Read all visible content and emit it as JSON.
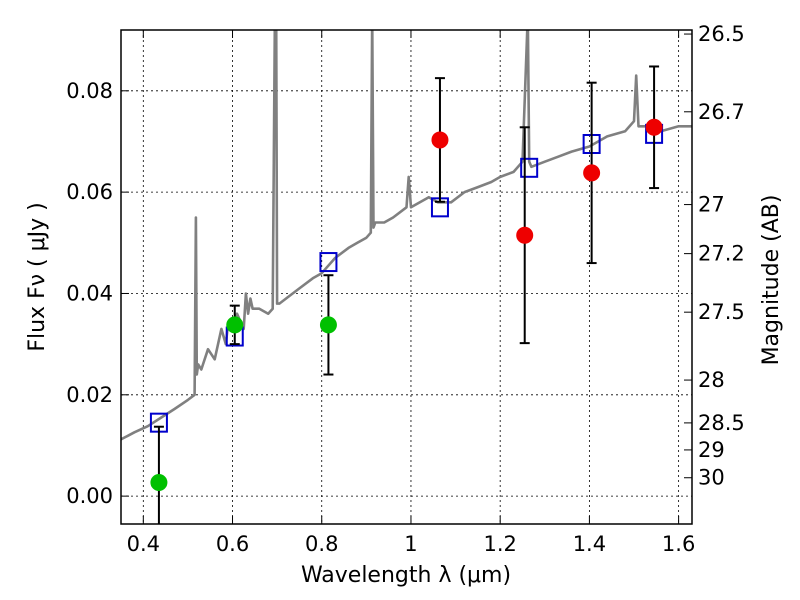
{
  "chart_data": {
    "type": "scatter",
    "xlabel": "Wavelength  λ (μm)",
    "ylabel": "Flux  Fν  ( μJy )",
    "ylabel_right": "Magnitude (AB)",
    "xlim": [
      0.35,
      1.63
    ],
    "ylim": [
      -0.0055,
      0.092
    ],
    "x_ticks": [
      0.4,
      0.6,
      0.8,
      1.0,
      1.2,
      1.4,
      1.6
    ],
    "x_tick_labels": [
      "0.4",
      "0.6",
      "0.8",
      "1",
      "1.2",
      "1.4",
      "1.6"
    ],
    "y_ticks": [
      0.0,
      0.02,
      0.04,
      0.06,
      0.08
    ],
    "y_tick_labels": [
      "0.00",
      "0.02",
      "0.04",
      "0.06",
      "0.08"
    ],
    "mag_ticks": [
      26.5,
      26.7,
      27,
      27.2,
      27.5,
      28,
      28.5,
      29,
      30
    ],
    "mag_tick_labels": [
      "26.5",
      "26.7",
      "27",
      "27.2",
      "27.5",
      "28",
      "28.5",
      "29",
      "30"
    ],
    "grid": true,
    "colors": {
      "model_line": "#808080",
      "model_points": "#0000cc",
      "green_points": "#00c000",
      "red_points": "#ee0000",
      "error_bars": "#000000"
    },
    "series": [
      {
        "kind": "line",
        "color": "#808080",
        "x": [
          0.35,
          0.38,
          0.41,
          0.44,
          0.47,
          0.5,
          0.515,
          0.518,
          0.52,
          0.523,
          0.53,
          0.545,
          0.56,
          0.575,
          0.585,
          0.59,
          0.6,
          0.61,
          0.625,
          0.63,
          0.635,
          0.64,
          0.645,
          0.66,
          0.68,
          0.69,
          0.695,
          0.698,
          0.7,
          0.705,
          0.72,
          0.75,
          0.78,
          0.8,
          0.83,
          0.86,
          0.88,
          0.9,
          0.91,
          0.913,
          0.916,
          0.92,
          0.94,
          0.96,
          0.99,
          0.995,
          1.0,
          1.02,
          1.04,
          1.06,
          1.09,
          1.12,
          1.15,
          1.18,
          1.2,
          1.23,
          1.25,
          1.262,
          1.265,
          1.27,
          1.3,
          1.33,
          1.36,
          1.4,
          1.44,
          1.48,
          1.5,
          1.505,
          1.51,
          1.53,
          1.56,
          1.6,
          1.63
        ],
        "y": [
          0.0112,
          0.0126,
          0.0138,
          0.0155,
          0.0172,
          0.019,
          0.02,
          0.055,
          0.024,
          0.026,
          0.025,
          0.029,
          0.027,
          0.033,
          0.03,
          0.034,
          0.033,
          0.036,
          0.033,
          0.04,
          0.036,
          0.039,
          0.037,
          0.037,
          0.036,
          0.037,
          0.095,
          0.095,
          0.038,
          0.038,
          0.039,
          0.041,
          0.043,
          0.044,
          0.047,
          0.049,
          0.05,
          0.051,
          0.052,
          0.095,
          0.053,
          0.054,
          0.054,
          0.055,
          0.057,
          0.063,
          0.057,
          0.058,
          0.059,
          0.058,
          0.058,
          0.06,
          0.061,
          0.062,
          0.063,
          0.064,
          0.066,
          0.095,
          0.066,
          0.065,
          0.066,
          0.067,
          0.068,
          0.069,
          0.071,
          0.072,
          0.074,
          0.083,
          0.073,
          0.073,
          0.072,
          0.073,
          0.073
        ]
      },
      {
        "kind": "model-points",
        "marker": "square",
        "color": "#0000cc",
        "x": [
          0.435,
          0.605,
          0.815,
          1.065,
          1.265,
          1.405,
          1.545
        ],
        "y": [
          0.0145,
          0.0315,
          0.0462,
          0.057,
          0.0648,
          0.0695,
          0.0715
        ]
      },
      {
        "kind": "observed-green",
        "marker": "circle",
        "color": "#00c000",
        "x": [
          0.435,
          0.605,
          0.815
        ],
        "y": [
          0.0027,
          0.0338,
          0.0338
        ],
        "yerr": [
          0.011,
          0.0038,
          0.0098
        ]
      },
      {
        "kind": "observed-red",
        "marker": "circle",
        "color": "#ee0000",
        "x": [
          1.065,
          1.255,
          1.405,
          1.545
        ],
        "y": [
          0.0703,
          0.0515,
          0.0638,
          0.0728
        ],
        "yerr": [
          0.0122,
          0.0213,
          0.0178,
          0.012
        ]
      }
    ]
  }
}
